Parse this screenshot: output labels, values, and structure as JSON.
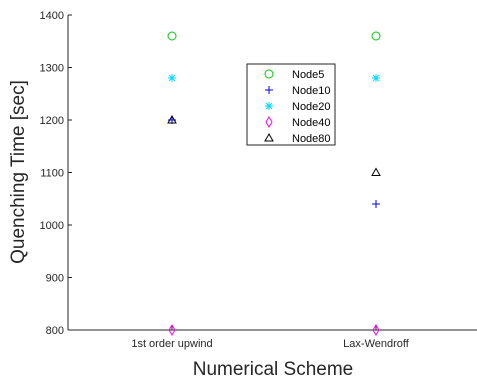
{
  "chart_data": {
    "type": "scatter",
    "title": "",
    "xlabel": "Numerical Scheme",
    "ylabel": "Quenching Time [sec]",
    "categories": [
      "1st order upwind",
      "Lax-Wendroff"
    ],
    "ylim": [
      800,
      1400
    ],
    "yticks": [
      800,
      900,
      1000,
      1100,
      1200,
      1300,
      1400
    ],
    "grid": false,
    "legend_position": "top-center",
    "series": [
      {
        "name": "Node5",
        "marker": "circle",
        "color": "#00cc00",
        "values": [
          1360,
          1360
        ]
      },
      {
        "name": "Node10",
        "marker": "plus",
        "color": "#0000ff",
        "values": [
          1200,
          1040
        ]
      },
      {
        "name": "Node20",
        "marker": "asterisk",
        "color": "#00d8ff",
        "values": [
          1280,
          1280
        ]
      },
      {
        "name": "Node40",
        "marker": "diamond",
        "color": "#ff00ff",
        "values": [
          800,
          800
        ]
      },
      {
        "name": "Node80",
        "marker": "triangle",
        "color": "#000000",
        "values": [
          1200,
          1100
        ]
      }
    ]
  }
}
